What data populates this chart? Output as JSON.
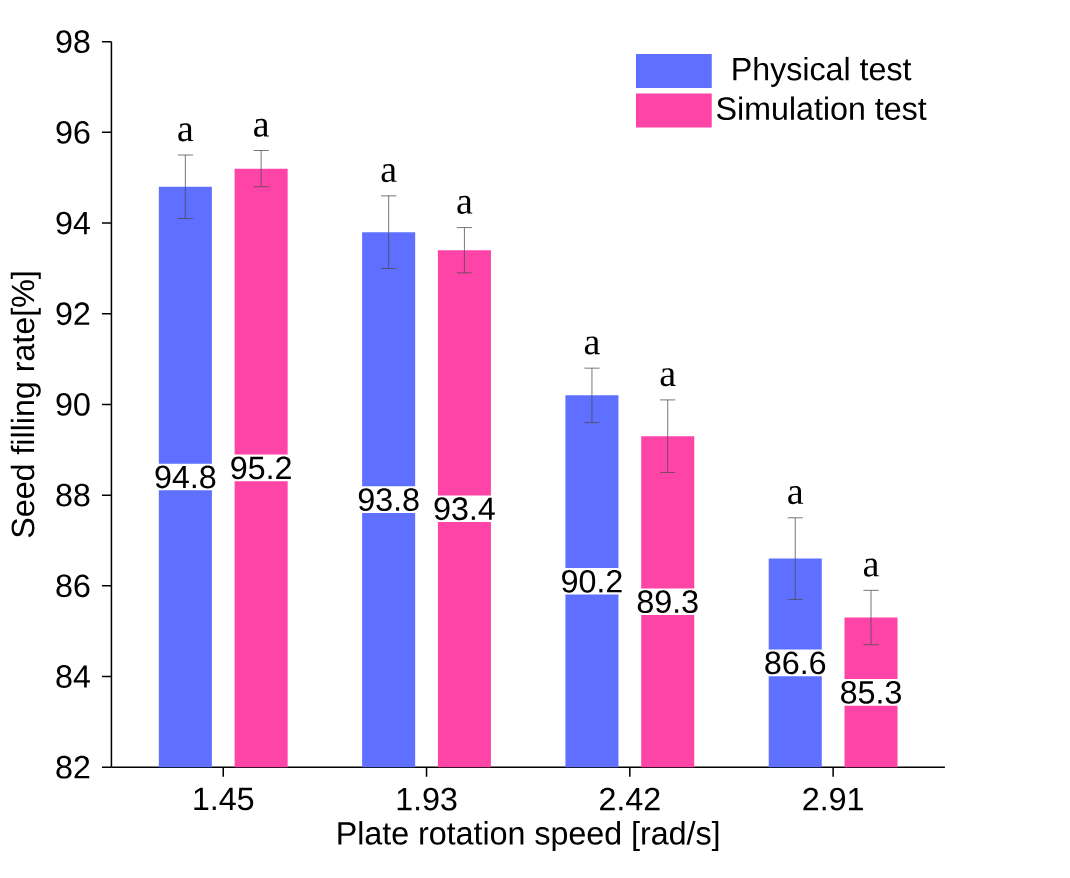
{
  "chart_data": {
    "type": "bar",
    "xlabel": "Plate rotation speed [rad/s]",
    "ylabel": "Seed filling rate[%]",
    "categories": [
      "1.45",
      "1.93",
      "2.42",
      "2.91"
    ],
    "series": [
      {
        "name": "Physical test",
        "color": "#5f6fff",
        "values": [
          94.8,
          93.8,
          90.2,
          86.6
        ],
        "errors": [
          0.7,
          0.8,
          0.6,
          0.9
        ]
      },
      {
        "name": "Simulation test",
        "color": "#ff44a8",
        "values": [
          95.2,
          93.4,
          89.3,
          85.3
        ],
        "errors": [
          0.4,
          0.5,
          0.8,
          0.6
        ]
      }
    ],
    "ylim": [
      82,
      98
    ],
    "yticks": [
      82,
      84,
      86,
      88,
      90,
      92,
      94,
      96,
      98
    ],
    "data_labels": true,
    "legend": "top right",
    "annotations": [
      "a",
      "a",
      "a",
      "a",
      "a",
      "a",
      "a",
      "a"
    ]
  }
}
